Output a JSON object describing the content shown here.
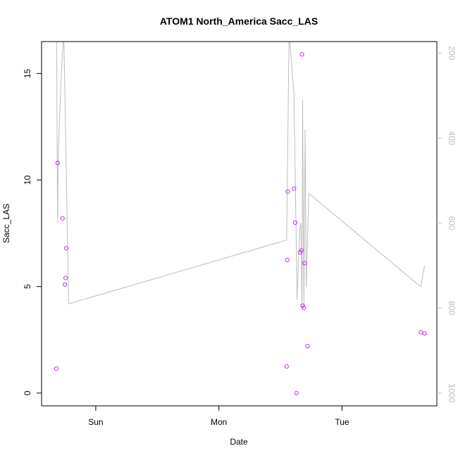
{
  "chart_data": {
    "type": "scatter",
    "title": "ATOM1 North_America Sacc_LAS",
    "xlabel": "Date",
    "ylabel": "Sacc_LAS",
    "x_ticks": [
      {
        "x": 1.0,
        "label": "Sun"
      },
      {
        "x": 2.0,
        "label": "Mon"
      },
      {
        "x": 3.0,
        "label": "Tue"
      }
    ],
    "x_range": [
      0.56,
      3.77
    ],
    "y_ticks": [
      0,
      5,
      10,
      15
    ],
    "y_range": [
      -0.6,
      16.5
    ],
    "y2_ticks": [
      200,
      400,
      600,
      800,
      1000
    ],
    "y2_range": [
      1030,
      173
    ],
    "y2_reversed": true,
    "colors": {
      "points": "#c030f0",
      "line": "#bdbdbd",
      "frame": "#000000",
      "right_axis": "#bdbdbd"
    },
    "points": [
      {
        "x": 0.68,
        "y": 1.15
      },
      {
        "x": 0.69,
        "y": 10.8
      },
      {
        "x": 0.73,
        "y": 8.2
      },
      {
        "x": 0.75,
        "y": 5.1
      },
      {
        "x": 0.755,
        "y": 5.4
      },
      {
        "x": 0.76,
        "y": 6.8
      },
      {
        "x": 2.55,
        "y": 1.25
      },
      {
        "x": 2.555,
        "y": 6.25
      },
      {
        "x": 2.56,
        "y": 9.45
      },
      {
        "x": 2.61,
        "y": 9.6
      },
      {
        "x": 2.62,
        "y": 8.0
      },
      {
        "x": 2.63,
        "y": 0.0
      },
      {
        "x": 2.66,
        "y": 6.6
      },
      {
        "x": 2.67,
        "y": 6.7
      },
      {
        "x": 2.675,
        "y": 15.9
      },
      {
        "x": 2.68,
        "y": 4.1
      },
      {
        "x": 2.69,
        "y": 4.0
      },
      {
        "x": 2.695,
        "y": 6.1
      },
      {
        "x": 2.72,
        "y": 2.2
      },
      {
        "x": 3.64,
        "y": 2.85
      },
      {
        "x": 3.67,
        "y": 2.8
      }
    ],
    "line_series": {
      "name": "",
      "axis": "right",
      "points": [
        {
          "x": 0.68,
          "y": 60
        },
        {
          "x": 0.69,
          "y": 600
        },
        {
          "x": 0.695,
          "y": 440
        },
        {
          "x": 0.72,
          "y": 250
        },
        {
          "x": 0.74,
          "y": 150
        },
        {
          "x": 0.78,
          "y": 790
        },
        {
          "x": 2.55,
          "y": 640
        },
        {
          "x": 2.57,
          "y": 150
        },
        {
          "x": 2.61,
          "y": 300
        },
        {
          "x": 2.635,
          "y": 780
        },
        {
          "x": 2.655,
          "y": 620
        },
        {
          "x": 2.665,
          "y": 600
        },
        {
          "x": 2.675,
          "y": 800
        },
        {
          "x": 2.68,
          "y": 310
        },
        {
          "x": 2.69,
          "y": 800
        },
        {
          "x": 2.7,
          "y": 380
        },
        {
          "x": 2.71,
          "y": 750
        },
        {
          "x": 2.73,
          "y": 530
        },
        {
          "x": 3.64,
          "y": 750
        },
        {
          "x": 3.67,
          "y": 700
        }
      ]
    }
  }
}
